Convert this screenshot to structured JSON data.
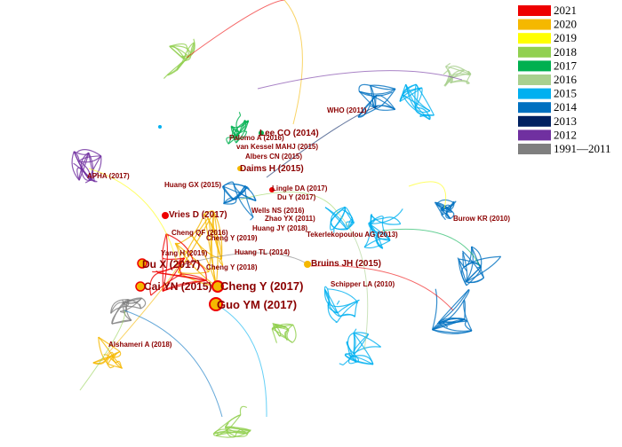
{
  "legend": [
    {
      "label": "2021",
      "color": "#ee0000"
    },
    {
      "label": "2020",
      "color": "#f5b800"
    },
    {
      "label": "2019",
      "color": "#ffff00"
    },
    {
      "label": "2018",
      "color": "#92d050"
    },
    {
      "label": "2017",
      "color": "#00b050"
    },
    {
      "label": "2016",
      "color": "#a9d08e"
    },
    {
      "label": "2015",
      "color": "#00b0f0"
    },
    {
      "label": "2014",
      "color": "#0070c0"
    },
    {
      "label": "2013",
      "color": "#002060"
    },
    {
      "label": "2012",
      "color": "#7030a0"
    },
    {
      "label": "1991—2011",
      "color": "#7f7f7f"
    }
  ],
  "nodes": [
    {
      "label": "WHO (2011)"
    },
    {
      "label": "Lee CO (2014)"
    },
    {
      "label": "Palomo A (2016)"
    },
    {
      "label": "van Kessel MAHJ (2015)"
    },
    {
      "label": "Albers CN (2015)"
    },
    {
      "label": "Daims H (2015)"
    },
    {
      "label": "APHA (2017)"
    },
    {
      "label": "Huang GX (2015)"
    },
    {
      "label": "Lingle DA (2017)"
    },
    {
      "label": "Du Y (2017)"
    },
    {
      "label": "Vries D (2017)"
    },
    {
      "label": "Wells NS (2016)"
    },
    {
      "label": "Zhao YX (2011)"
    },
    {
      "label": "Burow KR (2010)"
    },
    {
      "label": "Huang JY (2018)"
    },
    {
      "label": "Cheng QF (2016)"
    },
    {
      "label": "Tekerlekopoulou AG (2013)"
    },
    {
      "label": "Cheng Y (2019)"
    },
    {
      "label": "Huang TL (2014)"
    },
    {
      "label": "Yang H (2019)"
    },
    {
      "label": "Du X (2017)"
    },
    {
      "label": "Cheng Y (2018)"
    },
    {
      "label": "Bruins JH (2015)"
    },
    {
      "label": "Schipper LA (2010)"
    },
    {
      "label": "Cai YN (2015)"
    },
    {
      "label": "Cheng Y (2017)"
    },
    {
      "label": "Guo YM (2017)"
    },
    {
      "label": "Alshameri A (2018)"
    }
  ]
}
